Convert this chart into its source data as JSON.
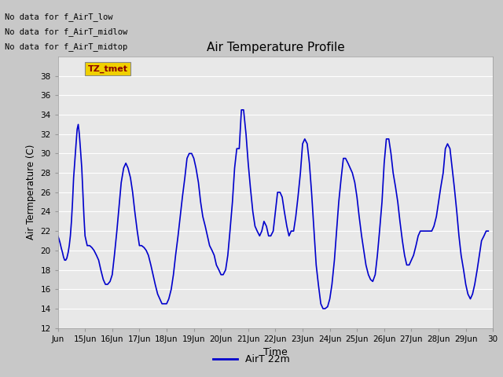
{
  "title": "Air Temperature Profile",
  "xlabel": "Time",
  "ylabel": "Air Termperature (C)",
  "xlim_start": 14.0,
  "xlim_end": 30.0,
  "ylim": [
    12,
    40
  ],
  "yticks": [
    12,
    14,
    16,
    18,
    20,
    22,
    24,
    26,
    28,
    30,
    32,
    34,
    36,
    38
  ],
  "xtick_labels": [
    "Jun",
    "15Jun",
    "16Jun",
    "17Jun",
    "18Jun",
    "19Jun",
    "20Jun",
    "21Jun",
    "22Jun",
    "23Jun",
    "24Jun",
    "25Jun",
    "26Jun",
    "27Jun",
    "28Jun",
    "29Jun",
    "30"
  ],
  "xtick_positions": [
    14,
    15,
    16,
    17,
    18,
    19,
    20,
    21,
    22,
    23,
    24,
    25,
    26,
    27,
    28,
    29,
    30
  ],
  "line_color": "#0000cc",
  "line_width": 1.2,
  "legend_label": "AirT 22m",
  "legend_line_color": "#0000cc",
  "no_data_texts": [
    "No data for f_AirT_low",
    "No data for f_AirT_midlow",
    "No data for f_AirT_midtop"
  ],
  "tz_label": "TZ_tmet",
  "fig_bg_color": "#c8c8c8",
  "plot_bg_color": "#e8e8e8",
  "x_values": [
    14.0,
    14.04,
    14.08,
    14.13,
    14.17,
    14.21,
    14.25,
    14.29,
    14.33,
    14.38,
    14.42,
    14.46,
    14.5,
    14.54,
    14.58,
    14.63,
    14.67,
    14.71,
    14.75,
    14.79,
    14.83,
    14.88,
    14.92,
    14.96,
    15.0,
    15.08,
    15.17,
    15.25,
    15.33,
    15.42,
    15.5,
    15.58,
    15.67,
    15.75,
    15.83,
    15.92,
    16.0,
    16.08,
    16.17,
    16.25,
    16.33,
    16.42,
    16.5,
    16.58,
    16.67,
    16.75,
    16.83,
    16.92,
    17.0,
    17.08,
    17.17,
    17.25,
    17.33,
    17.42,
    17.5,
    17.58,
    17.67,
    17.75,
    17.83,
    17.92,
    18.0,
    18.08,
    18.17,
    18.25,
    18.33,
    18.42,
    18.5,
    18.58,
    18.67,
    18.75,
    18.83,
    18.92,
    19.0,
    19.08,
    19.17,
    19.25,
    19.33,
    19.42,
    19.5,
    19.58,
    19.67,
    19.75,
    19.83,
    19.92,
    20.0,
    20.08,
    20.17,
    20.25,
    20.33,
    20.42,
    20.5,
    20.58,
    20.67,
    20.75,
    20.83,
    20.92,
    21.0,
    21.08,
    21.17,
    21.25,
    21.33,
    21.42,
    21.5,
    21.58,
    21.67,
    21.75,
    21.83,
    21.92,
    22.0,
    22.08,
    22.17,
    22.25,
    22.33,
    22.42,
    22.5,
    22.58,
    22.67,
    22.75,
    22.83,
    22.92,
    23.0,
    23.08,
    23.17,
    23.25,
    23.33,
    23.42,
    23.5,
    23.58,
    23.67,
    23.75,
    23.83,
    23.92,
    24.0,
    24.08,
    24.17,
    24.25,
    24.33,
    24.42,
    24.5,
    24.58,
    24.67,
    24.75,
    24.83,
    24.92,
    25.0,
    25.08,
    25.17,
    25.25,
    25.33,
    25.42,
    25.5,
    25.58,
    25.67,
    25.75,
    25.83,
    25.92,
    26.0,
    26.08,
    26.17,
    26.25,
    26.33,
    26.42,
    26.5,
    26.58,
    26.67,
    26.75,
    26.83,
    26.92,
    27.0,
    27.08,
    27.17,
    27.25,
    27.33,
    27.42,
    27.5,
    27.58,
    27.67,
    27.75,
    27.83,
    27.92,
    28.0,
    28.08,
    28.17,
    28.25,
    28.33,
    28.42,
    28.5,
    28.58,
    28.67,
    28.75,
    28.83,
    28.92,
    29.0,
    29.08,
    29.17,
    29.25,
    29.33,
    29.42,
    29.5,
    29.58,
    29.67,
    29.75,
    29.83
  ],
  "y_values": [
    21.5,
    21.2,
    20.8,
    20.2,
    19.8,
    19.3,
    19.0,
    19.0,
    19.2,
    19.8,
    20.5,
    21.5,
    23.0,
    25.0,
    27.5,
    29.5,
    31.0,
    32.5,
    33.0,
    32.0,
    30.5,
    28.5,
    26.0,
    23.5,
    21.5,
    20.5,
    20.5,
    20.3,
    20.0,
    19.5,
    19.0,
    18.0,
    17.0,
    16.5,
    16.5,
    16.8,
    17.5,
    19.5,
    22.0,
    24.5,
    27.0,
    28.5,
    29.0,
    28.5,
    27.5,
    26.0,
    24.0,
    22.0,
    20.5,
    20.5,
    20.3,
    20.0,
    19.5,
    18.5,
    17.5,
    16.5,
    15.5,
    15.0,
    14.5,
    14.5,
    14.5,
    15.0,
    16.0,
    17.5,
    19.5,
    21.5,
    23.5,
    25.5,
    27.5,
    29.5,
    30.0,
    30.0,
    29.5,
    28.5,
    27.0,
    25.0,
    23.5,
    22.5,
    21.5,
    20.5,
    20.0,
    19.5,
    18.5,
    18.0,
    17.5,
    17.5,
    18.0,
    19.5,
    22.0,
    25.0,
    28.5,
    30.5,
    30.5,
    34.5,
    34.5,
    32.0,
    29.0,
    26.5,
    24.0,
    22.5,
    22.0,
    21.5,
    22.0,
    23.0,
    22.5,
    21.5,
    21.5,
    22.0,
    24.0,
    26.0,
    26.0,
    25.5,
    24.0,
    22.5,
    21.5,
    22.0,
    22.0,
    23.5,
    25.5,
    28.0,
    31.0,
    31.5,
    31.0,
    29.0,
    26.0,
    22.0,
    18.5,
    16.5,
    14.5,
    14.0,
    14.0,
    14.2,
    15.0,
    16.5,
    19.0,
    22.0,
    25.0,
    27.5,
    29.5,
    29.5,
    29.0,
    28.5,
    28.0,
    27.0,
    25.5,
    23.5,
    21.5,
    20.0,
    18.5,
    17.5,
    17.0,
    16.8,
    17.5,
    19.5,
    22.0,
    25.0,
    29.0,
    31.5,
    31.5,
    30.0,
    28.0,
    26.5,
    25.0,
    23.0,
    21.0,
    19.5,
    18.5,
    18.5,
    19.0,
    19.5,
    20.5,
    21.5,
    22.0,
    22.0,
    22.0,
    22.0,
    22.0,
    22.0,
    22.5,
    23.5,
    25.0,
    26.5,
    28.0,
    30.5,
    31.0,
    30.5,
    28.5,
    26.5,
    24.0,
    21.5,
    19.5,
    18.0,
    16.5,
    15.5,
    15.0,
    15.5,
    16.5,
    18.0,
    19.5,
    21.0,
    21.5,
    22.0,
    22.0
  ]
}
